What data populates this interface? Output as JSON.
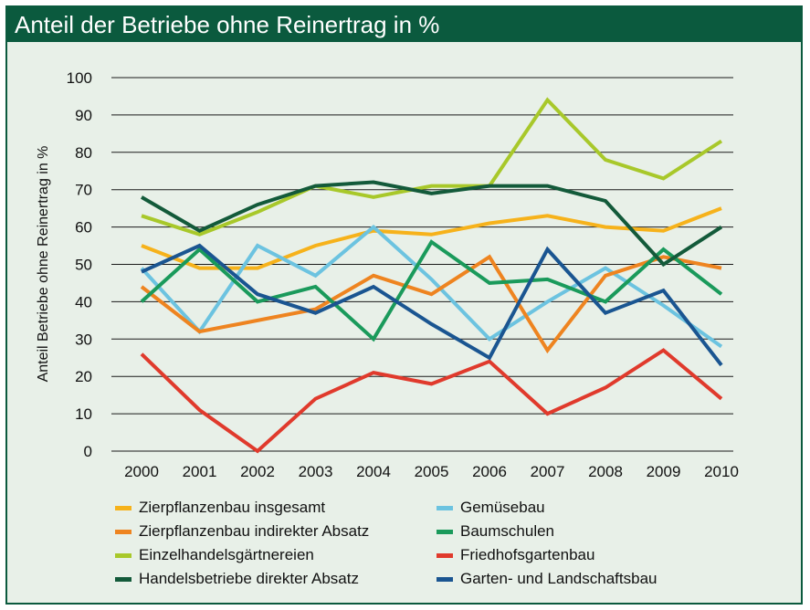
{
  "title": "Anteil der Betriebe ohne Reinertrag in %",
  "colors": {
    "frame": "#0b5a3e",
    "background": "#e8f0e8"
  },
  "chart_data": {
    "type": "line",
    "ylabel": "Anteil Betriebe ohne Reinertrag in %",
    "xlabel": "",
    "ylim": [
      0,
      100
    ],
    "yticks": [
      0,
      10,
      20,
      30,
      40,
      50,
      60,
      70,
      80,
      90,
      100
    ],
    "grid": "horizontal",
    "legend_position": "bottom",
    "categories": [
      "2000",
      "2001",
      "2002",
      "2003",
      "2004",
      "2005",
      "2006",
      "2007",
      "2008",
      "2009",
      "2010"
    ],
    "series": [
      {
        "name": "Zierpflanzenbau insgesamt",
        "color": "#f6b21b",
        "values": [
          55,
          49,
          49,
          55,
          59,
          58,
          61,
          63,
          60,
          59,
          65
        ]
      },
      {
        "name": "Gemüsebau",
        "color": "#6cc3e0",
        "values": [
          49,
          32,
          55,
          47,
          60,
          46,
          30,
          40,
          49,
          39,
          28
        ]
      },
      {
        "name": "Zierpflanzenbau indirekter Absatz",
        "color": "#ee8420",
        "values": [
          44,
          32,
          35,
          38,
          47,
          42,
          52,
          27,
          47,
          52,
          49
        ]
      },
      {
        "name": "Baumschulen",
        "color": "#1a9a5b",
        "values": [
          40,
          54,
          40,
          44,
          30,
          56,
          45,
          46,
          40,
          54,
          42
        ]
      },
      {
        "name": "Einzelhandelsgärtnereien",
        "color": "#a8c82a",
        "values": [
          63,
          58,
          64,
          71,
          68,
          71,
          71,
          94,
          78,
          73,
          83
        ]
      },
      {
        "name": "Friedhofsgartenbau",
        "color": "#e03a2c",
        "values": [
          26,
          11,
          0,
          14,
          21,
          18,
          24,
          10,
          17,
          27,
          14
        ]
      },
      {
        "name": "Handelsbetriebe direkter Absatz",
        "color": "#135a3a",
        "values": [
          68,
          59,
          66,
          71,
          72,
          69,
          71,
          71,
          67,
          50,
          60
        ]
      },
      {
        "name": "Garten- und Landschaftsbau",
        "color": "#1a5591",
        "values": [
          48,
          55,
          42,
          37,
          44,
          34,
          25,
          54,
          37,
          43,
          23
        ]
      }
    ]
  }
}
